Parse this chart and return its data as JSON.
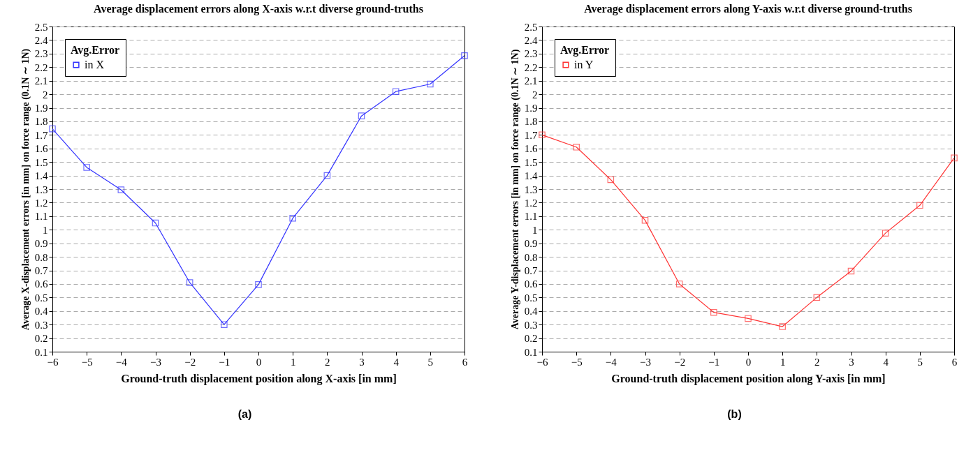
{
  "chart_data": [
    {
      "type": "line",
      "title": "Average displacement errors along X-axis w.r.t diverse ground-truths",
      "xlabel": "Ground-truth displacement position along X-axis [in mm]",
      "ylabel": "Average X-displacement errors [in mm] on force range (0.1N ∼ 1N)",
      "legend_title": "Avg.Error",
      "legend": "top left",
      "grid": "y",
      "marker": "square",
      "line_style": "solid",
      "annotations": [
        "(a)"
      ],
      "x": [
        -6,
        -5,
        -4,
        -3,
        -2,
        -1,
        0,
        1,
        2,
        3,
        4,
        5,
        6
      ],
      "series": [
        {
          "name": "in X",
          "color": "#3333ff",
          "values": [
            1.745,
            1.46,
            1.295,
            1.05,
            0.61,
            0.3,
            0.595,
            1.085,
            1.4,
            1.84,
            2.02,
            2.075,
            2.285
          ]
        }
      ],
      "xlim": [
        -6,
        6
      ],
      "xticks": [
        -6,
        -5,
        -4,
        -3,
        -2,
        -1,
        0,
        1,
        2,
        3,
        4,
        5,
        6
      ],
      "ylim": [
        0.1,
        2.5
      ],
      "yticks": [
        0.1,
        0.2,
        0.3,
        0.4,
        0.5,
        0.6,
        0.7,
        0.8,
        0.9,
        1,
        1.1,
        1.2,
        1.3,
        1.4,
        1.5,
        1.6,
        1.7,
        1.8,
        1.9,
        2,
        2.1,
        2.2,
        2.3,
        2.4,
        2.5
      ]
    },
    {
      "type": "line",
      "title": "Average displacement errors along Y-axis w.r.t diverse ground-truths",
      "xlabel": "Ground-truth displacement position along Y-axis [in mm]",
      "ylabel": "Average Y-displacement errors [in mm] on force range (0.1N ∼ 1N)",
      "legend_title": "Avg.Error",
      "legend": "top left",
      "grid": "y",
      "marker": "square",
      "line_style": "solid",
      "annotations": [
        "(b)"
      ],
      "x": [
        -6,
        -5,
        -4,
        -3,
        -2,
        -1,
        0,
        1,
        2,
        3,
        4,
        5,
        6
      ],
      "series": [
        {
          "name": "in Y",
          "color": "#ff3333",
          "values": [
            1.7,
            1.61,
            1.37,
            1.07,
            0.6,
            0.39,
            0.345,
            0.285,
            0.5,
            0.695,
            0.975,
            1.18,
            1.53
          ]
        }
      ],
      "xlim": [
        -6,
        6
      ],
      "xticks": [
        -6,
        -5,
        -4,
        -3,
        -2,
        -1,
        0,
        1,
        2,
        3,
        4,
        5,
        6
      ],
      "ylim": [
        0.1,
        2.5
      ],
      "yticks": [
        0.1,
        0.2,
        0.3,
        0.4,
        0.5,
        0.6,
        0.7,
        0.8,
        0.9,
        1,
        1.1,
        1.2,
        1.3,
        1.4,
        1.5,
        1.6,
        1.7,
        1.8,
        1.9,
        2,
        2.1,
        2.2,
        2.3,
        2.4,
        2.5
      ]
    }
  ]
}
